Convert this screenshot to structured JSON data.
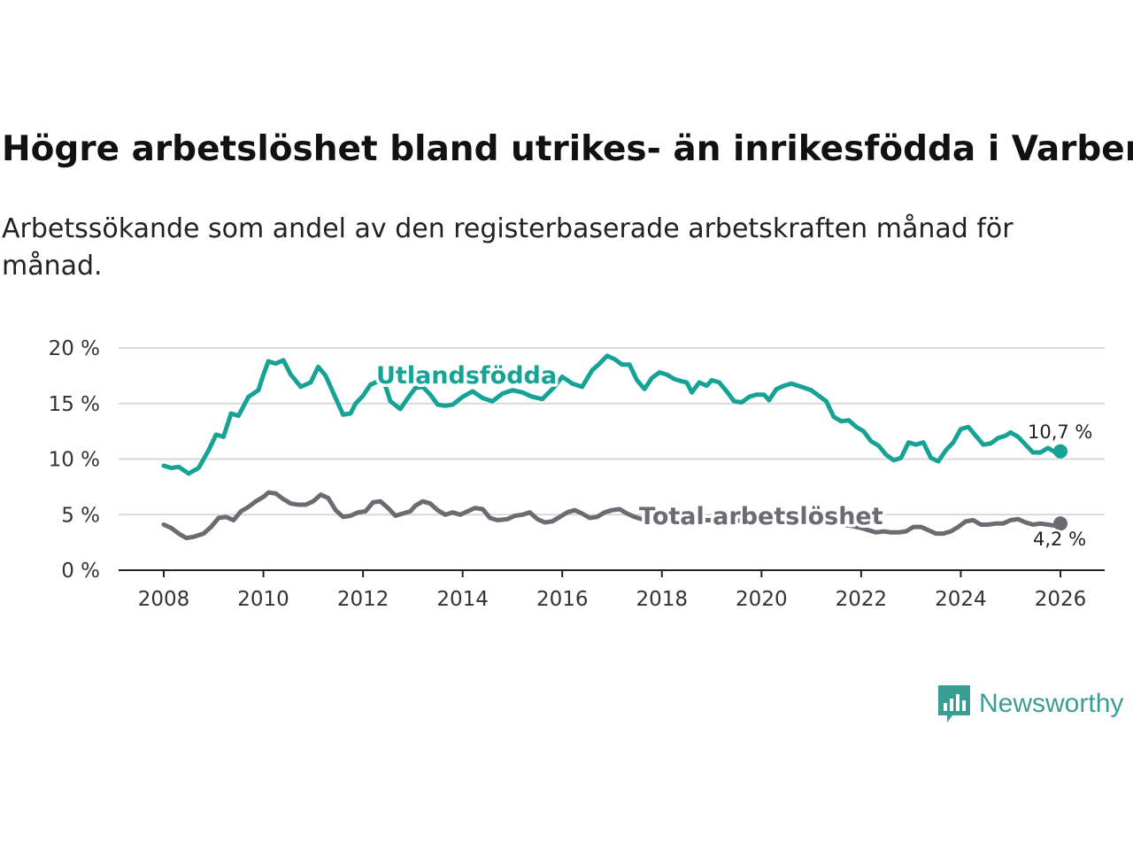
{
  "header": {
    "title": "Högre arbetslöshet bland utrikes- än inrikesfödda i Varberg",
    "subtitle": "Arbetssökande som andel av den registerbaserade arbetskraften månad för månad."
  },
  "brand": {
    "name": "Newsworthy",
    "color": "#3a9e94"
  },
  "chart_data": {
    "type": "line",
    "title": "Högre arbetslöshet bland utrikes- än inrikesfödda i Varberg",
    "subtitle": "Arbetssökande som andel av den registerbaserade arbetskraften månad för månad.",
    "xlabel": "",
    "ylabel": "",
    "xlim": [
      2007.6,
      2026.9
    ],
    "ylim": [
      0,
      20
    ],
    "x_ticks": [
      2008,
      2010,
      2012,
      2014,
      2016,
      2018,
      2020,
      2022,
      2024,
      2026
    ],
    "x_tick_labels": [
      "2008",
      "2010",
      "2012",
      "2014",
      "2016",
      "2018",
      "2020",
      "2022",
      "2024",
      "2026"
    ],
    "y_ticks": [
      0,
      5,
      10,
      15,
      20
    ],
    "y_tick_labels": [
      "0 %",
      "5 %",
      "10 %",
      "15 %",
      "20 %"
    ],
    "grid": true,
    "series": [
      {
        "name": "Utlandsfödda",
        "color": "#16a396",
        "end_label": "10,7 %",
        "points": [
          [
            2008.0,
            9.4
          ],
          [
            2008.15,
            9.2
          ],
          [
            2008.3,
            9.3
          ],
          [
            2008.5,
            8.7
          ],
          [
            2008.7,
            9.2
          ],
          [
            2008.9,
            10.8
          ],
          [
            2009.05,
            12.2
          ],
          [
            2009.2,
            12.0
          ],
          [
            2009.35,
            14.1
          ],
          [
            2009.5,
            13.9
          ],
          [
            2009.7,
            15.6
          ],
          [
            2009.9,
            16.2
          ],
          [
            2010.0,
            17.6
          ],
          [
            2010.1,
            18.8
          ],
          [
            2010.25,
            18.6
          ],
          [
            2010.4,
            18.9
          ],
          [
            2010.55,
            17.6
          ],
          [
            2010.75,
            16.5
          ],
          [
            2010.95,
            16.9
          ],
          [
            2011.1,
            18.3
          ],
          [
            2011.25,
            17.5
          ],
          [
            2011.4,
            16.0
          ],
          [
            2011.6,
            14.0
          ],
          [
            2011.75,
            14.1
          ],
          [
            2011.85,
            15.0
          ],
          [
            2012.0,
            15.7
          ],
          [
            2012.15,
            16.7
          ],
          [
            2012.3,
            17.0
          ],
          [
            2012.45,
            16.6
          ],
          [
            2012.55,
            15.2
          ],
          [
            2012.75,
            14.5
          ],
          [
            2012.9,
            15.5
          ],
          [
            2013.05,
            16.4
          ],
          [
            2013.2,
            16.5
          ],
          [
            2013.35,
            15.8
          ],
          [
            2013.5,
            14.9
          ],
          [
            2013.65,
            14.8
          ],
          [
            2013.8,
            14.9
          ],
          [
            2014.0,
            15.6
          ],
          [
            2014.2,
            16.1
          ],
          [
            2014.4,
            15.5
          ],
          [
            2014.6,
            15.2
          ],
          [
            2014.8,
            15.9
          ],
          [
            2015.0,
            16.2
          ],
          [
            2015.2,
            16.0
          ],
          [
            2015.4,
            15.6
          ],
          [
            2015.6,
            15.4
          ],
          [
            2015.8,
            16.3
          ],
          [
            2016.0,
            17.4
          ],
          [
            2016.2,
            16.8
          ],
          [
            2016.4,
            16.5
          ],
          [
            2016.6,
            18.0
          ],
          [
            2016.75,
            18.6
          ],
          [
            2016.9,
            19.3
          ],
          [
            2017.05,
            19.0
          ],
          [
            2017.2,
            18.5
          ],
          [
            2017.35,
            18.5
          ],
          [
            2017.5,
            17.1
          ],
          [
            2017.65,
            16.3
          ],
          [
            2017.8,
            17.3
          ],
          [
            2017.95,
            17.8
          ],
          [
            2018.1,
            17.6
          ],
          [
            2018.25,
            17.2
          ],
          [
            2018.4,
            17.0
          ],
          [
            2018.5,
            16.9
          ],
          [
            2018.6,
            16.0
          ],
          [
            2018.75,
            16.9
          ],
          [
            2018.9,
            16.6
          ],
          [
            2019.0,
            17.1
          ],
          [
            2019.15,
            16.9
          ],
          [
            2019.3,
            16.1
          ],
          [
            2019.45,
            15.2
          ],
          [
            2019.6,
            15.1
          ],
          [
            2019.75,
            15.6
          ],
          [
            2019.9,
            15.8
          ],
          [
            2020.05,
            15.8
          ],
          [
            2020.15,
            15.3
          ],
          [
            2020.3,
            16.3
          ],
          [
            2020.45,
            16.6
          ],
          [
            2020.6,
            16.8
          ],
          [
            2020.8,
            16.5
          ],
          [
            2021.0,
            16.2
          ],
          [
            2021.15,
            15.7
          ],
          [
            2021.3,
            15.2
          ],
          [
            2021.45,
            13.8
          ],
          [
            2021.6,
            13.4
          ],
          [
            2021.75,
            13.5
          ],
          [
            2021.9,
            12.9
          ],
          [
            2022.05,
            12.5
          ],
          [
            2022.2,
            11.6
          ],
          [
            2022.35,
            11.2
          ],
          [
            2022.5,
            10.4
          ],
          [
            2022.65,
            9.9
          ],
          [
            2022.8,
            10.1
          ],
          [
            2022.95,
            11.5
          ],
          [
            2023.1,
            11.3
          ],
          [
            2023.25,
            11.5
          ],
          [
            2023.4,
            10.1
          ],
          [
            2023.55,
            9.8
          ],
          [
            2023.7,
            10.8
          ],
          [
            2023.85,
            11.5
          ],
          [
            2024.0,
            12.7
          ],
          [
            2024.15,
            12.9
          ],
          [
            2024.3,
            12.1
          ],
          [
            2024.45,
            11.3
          ],
          [
            2024.6,
            11.4
          ],
          [
            2024.75,
            11.9
          ],
          [
            2024.9,
            12.1
          ],
          [
            2025.0,
            12.4
          ],
          [
            2025.15,
            12.0
          ],
          [
            2025.3,
            11.3
          ],
          [
            2025.45,
            10.6
          ],
          [
            2025.6,
            10.6
          ],
          [
            2025.75,
            11.0
          ],
          [
            2025.9,
            10.6
          ],
          [
            2026.0,
            10.7
          ]
        ]
      },
      {
        "name": "Total arbetslöshet",
        "color": "#6b6b72",
        "end_label": "4,2 %",
        "points": [
          [
            2008.0,
            4.1
          ],
          [
            2008.15,
            3.8
          ],
          [
            2008.3,
            3.3
          ],
          [
            2008.45,
            2.9
          ],
          [
            2008.6,
            3.0
          ],
          [
            2008.8,
            3.3
          ],
          [
            2008.95,
            3.9
          ],
          [
            2009.1,
            4.7
          ],
          [
            2009.25,
            4.8
          ],
          [
            2009.4,
            4.5
          ],
          [
            2009.55,
            5.3
          ],
          [
            2009.7,
            5.7
          ],
          [
            2009.85,
            6.2
          ],
          [
            2010.0,
            6.6
          ],
          [
            2010.1,
            7.0
          ],
          [
            2010.25,
            6.9
          ],
          [
            2010.4,
            6.4
          ],
          [
            2010.55,
            6.0
          ],
          [
            2010.7,
            5.9
          ],
          [
            2010.85,
            5.9
          ],
          [
            2011.0,
            6.2
          ],
          [
            2011.15,
            6.8
          ],
          [
            2011.3,
            6.5
          ],
          [
            2011.45,
            5.4
          ],
          [
            2011.6,
            4.8
          ],
          [
            2011.75,
            4.9
          ],
          [
            2011.9,
            5.2
          ],
          [
            2012.05,
            5.3
          ],
          [
            2012.2,
            6.1
          ],
          [
            2012.35,
            6.2
          ],
          [
            2012.5,
            5.6
          ],
          [
            2012.65,
            4.9
          ],
          [
            2012.8,
            5.1
          ],
          [
            2012.95,
            5.3
          ],
          [
            2013.05,
            5.8
          ],
          [
            2013.2,
            6.2
          ],
          [
            2013.35,
            6.0
          ],
          [
            2013.5,
            5.4
          ],
          [
            2013.65,
            5.0
          ],
          [
            2013.8,
            5.2
          ],
          [
            2013.95,
            5.0
          ],
          [
            2014.1,
            5.3
          ],
          [
            2014.25,
            5.6
          ],
          [
            2014.4,
            5.5
          ],
          [
            2014.55,
            4.7
          ],
          [
            2014.7,
            4.5
          ],
          [
            2014.9,
            4.6
          ],
          [
            2015.05,
            4.9
          ],
          [
            2015.2,
            5.0
          ],
          [
            2015.35,
            5.2
          ],
          [
            2015.5,
            4.6
          ],
          [
            2015.65,
            4.3
          ],
          [
            2015.8,
            4.4
          ],
          [
            2015.95,
            4.8
          ],
          [
            2016.1,
            5.2
          ],
          [
            2016.25,
            5.4
          ],
          [
            2016.4,
            5.1
          ],
          [
            2016.55,
            4.7
          ],
          [
            2016.7,
            4.8
          ],
          [
            2016.85,
            5.2
          ],
          [
            2017.0,
            5.4
          ],
          [
            2017.15,
            5.5
          ],
          [
            2017.3,
            5.1
          ],
          [
            2017.45,
            4.8
          ],
          [
            2017.6,
            4.6
          ],
          [
            2017.8,
            4.5
          ],
          [
            2018.0,
            4.6
          ],
          [
            2018.2,
            4.5
          ],
          [
            2018.4,
            4.5
          ],
          [
            2018.6,
            4.6
          ],
          [
            2018.8,
            4.5
          ],
          [
            2019.0,
            4.5
          ],
          [
            2019.2,
            4.4
          ],
          [
            2019.4,
            4.4
          ],
          [
            2019.6,
            4.5
          ],
          [
            2019.8,
            4.5
          ],
          [
            2020.0,
            4.6
          ],
          [
            2020.2,
            4.9
          ],
          [
            2020.4,
            5.2
          ],
          [
            2020.6,
            5.2
          ],
          [
            2020.8,
            5.0
          ],
          [
            2021.0,
            4.8
          ],
          [
            2021.2,
            4.6
          ],
          [
            2021.4,
            4.3
          ],
          [
            2021.6,
            4.1
          ],
          [
            2021.8,
            4.0
          ],
          [
            2022.0,
            3.8
          ],
          [
            2022.15,
            3.6
          ],
          [
            2022.3,
            3.4
          ],
          [
            2022.45,
            3.5
          ],
          [
            2022.6,
            3.4
          ],
          [
            2022.75,
            3.4
          ],
          [
            2022.9,
            3.5
          ],
          [
            2023.05,
            3.9
          ],
          [
            2023.2,
            3.9
          ],
          [
            2023.35,
            3.6
          ],
          [
            2023.5,
            3.3
          ],
          [
            2023.65,
            3.3
          ],
          [
            2023.8,
            3.5
          ],
          [
            2023.95,
            3.9
          ],
          [
            2024.1,
            4.4
          ],
          [
            2024.25,
            4.5
          ],
          [
            2024.4,
            4.1
          ],
          [
            2024.55,
            4.1
          ],
          [
            2024.7,
            4.2
          ],
          [
            2024.85,
            4.2
          ],
          [
            2025.0,
            4.5
          ],
          [
            2025.15,
            4.6
          ],
          [
            2025.3,
            4.3
          ],
          [
            2025.45,
            4.1
          ],
          [
            2025.6,
            4.2
          ],
          [
            2025.75,
            4.1
          ],
          [
            2025.9,
            4.0
          ],
          [
            2026.0,
            4.2
          ]
        ]
      }
    ]
  }
}
